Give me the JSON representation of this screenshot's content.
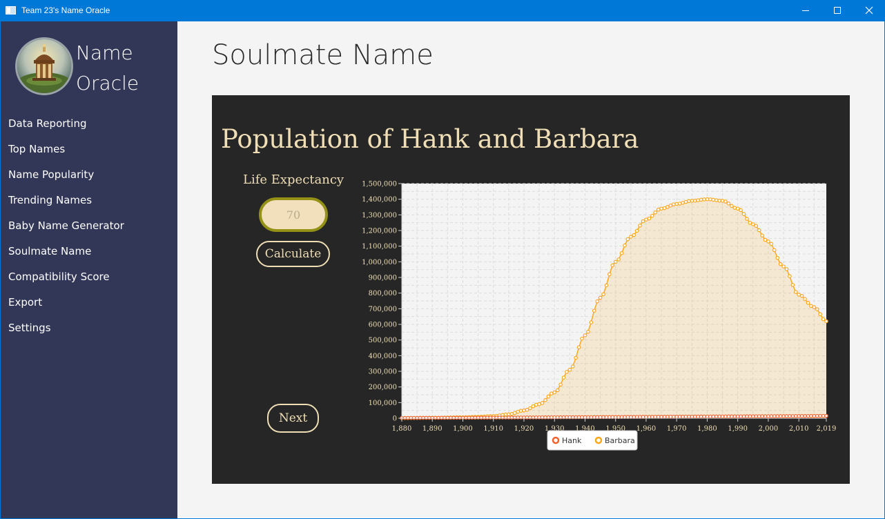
{
  "window": {
    "title": "Team 23's Name Oracle"
  },
  "sidebar": {
    "brand_line1": "Name",
    "brand_line2": "Oracle",
    "items": [
      {
        "label": "Data Reporting"
      },
      {
        "label": "Top Names"
      },
      {
        "label": "Name Popularity"
      },
      {
        "label": "Trending Names"
      },
      {
        "label": "Baby Name Generator"
      },
      {
        "label": "Soulmate Name"
      },
      {
        "label": "Compatibility Score"
      },
      {
        "label": "Export"
      },
      {
        "label": "Settings"
      }
    ]
  },
  "main": {
    "page_title": "Soulmate Name",
    "panel_title": "Population of Hank and Barbara",
    "life_expectancy_label": "Life Expectancy",
    "life_expectancy_value": "70",
    "calculate_label": "Calculate",
    "next_label": "Next"
  },
  "colors": {
    "sidebar": "#323657",
    "panel": "#262626",
    "accent_text": "#f0dfb6",
    "input_border": "#949216",
    "hank": "#f3622d",
    "barbara": "#fba71b"
  },
  "chart_data": {
    "type": "area",
    "title": "",
    "xlabel": "",
    "ylabel": "",
    "xlim": [
      1880,
      2019
    ],
    "ylim": [
      0,
      1500000
    ],
    "grid": true,
    "legend_position": "bottom",
    "x_ticks": [
      1880,
      1890,
      1900,
      1910,
      1920,
      1930,
      1940,
      1950,
      1960,
      1970,
      1980,
      1990,
      2000,
      2010,
      2019
    ],
    "x_tick_labels": [
      "1,880",
      "1,890",
      "1,900",
      "1,910",
      "1,920",
      "1,930",
      "1,940",
      "1,950",
      "1,960",
      "1,970",
      "1,980",
      "1,990",
      "2,000",
      "2,010",
      "2,019"
    ],
    "y_ticks": [
      0,
      100000,
      200000,
      300000,
      400000,
      500000,
      600000,
      700000,
      800000,
      900000,
      1000000,
      1100000,
      1200000,
      1300000,
      1400000,
      1500000
    ],
    "y_tick_labels": [
      "0",
      "100,000",
      "200,000",
      "300,000",
      "400,000",
      "500,000",
      "600,000",
      "700,000",
      "800,000",
      "900,000",
      "1,000,000",
      "1,100,000",
      "1,200,000",
      "1,300,000",
      "1,400,000",
      "1,500,000"
    ],
    "x": [
      1880,
      1890,
      1900,
      1905,
      1910,
      1915,
      1920,
      1925,
      1930,
      1935,
      1940,
      1945,
      1950,
      1955,
      1960,
      1965,
      1970,
      1975,
      1980,
      1985,
      1990,
      1995,
      2000,
      2005,
      2010,
      2015,
      2019
    ],
    "series": [
      {
        "name": "Hank",
        "values": [
          2000,
          2500,
          3000,
          3500,
          4000,
          4500,
          5000,
          5500,
          6000,
          6500,
          7000,
          7500,
          8000,
          8500,
          9000,
          9500,
          10000,
          10500,
          11000,
          11500,
          12000,
          12500,
          13000,
          13500,
          14000,
          14500,
          15000
        ]
      },
      {
        "name": "Barbara",
        "values": [
          1000,
          3000,
          6000,
          9000,
          14000,
          25000,
          50000,
          90000,
          165000,
          310000,
          530000,
          770000,
          1000000,
          1160000,
          1270000,
          1340000,
          1370000,
          1390000,
          1400000,
          1390000,
          1340000,
          1240000,
          1130000,
          970000,
          790000,
          710000,
          620000
        ]
      }
    ]
  }
}
